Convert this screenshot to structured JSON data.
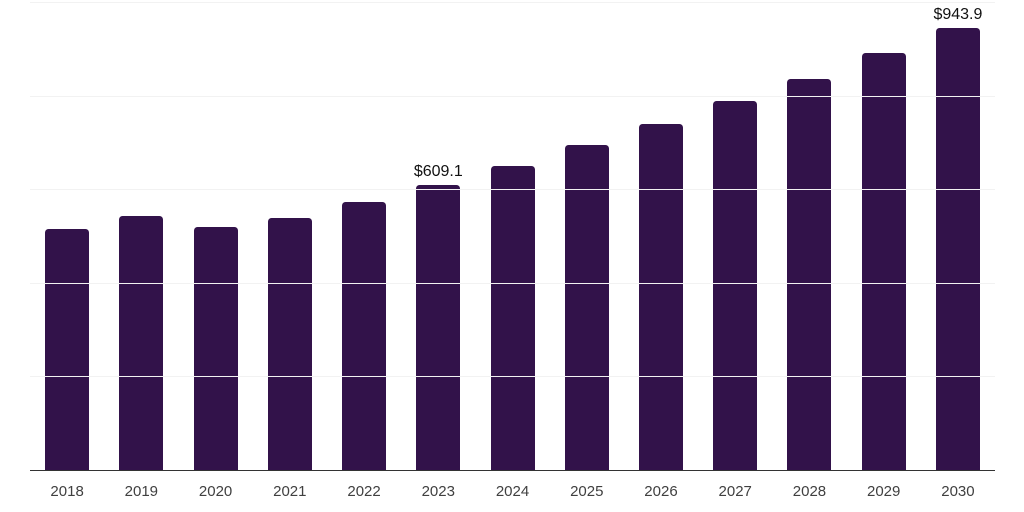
{
  "chart": {
    "background": "#ffffff",
    "bar_color": "#32124a",
    "grid_color": "#f2f2f2",
    "axis_line_color": "#333333",
    "tick_label_color": "#404040",
    "data_label_color": "#111111"
  },
  "chart_data": {
    "type": "bar",
    "title": "",
    "xlabel": "",
    "ylabel": "",
    "categories": [
      "2018",
      "2019",
      "2020",
      "2021",
      "2022",
      "2023",
      "2024",
      "2025",
      "2026",
      "2027",
      "2028",
      "2029",
      "2030"
    ],
    "values": [
      514.3,
      543.4,
      518.6,
      539.1,
      572.6,
      609.1,
      650.4,
      694.8,
      739.2,
      788.5,
      836.5,
      890.7,
      943.9
    ],
    "data_labels": [
      "",
      "",
      "",
      "",
      "",
      "$609.1",
      "",
      "",
      "",
      "",
      "",
      "",
      "$943.9"
    ],
    "currency_prefix": "$",
    "ylim": [
      0,
      1000
    ],
    "grid_step": 200,
    "grid": true,
    "y_axis_labels_visible": false,
    "legend_position": "none"
  }
}
